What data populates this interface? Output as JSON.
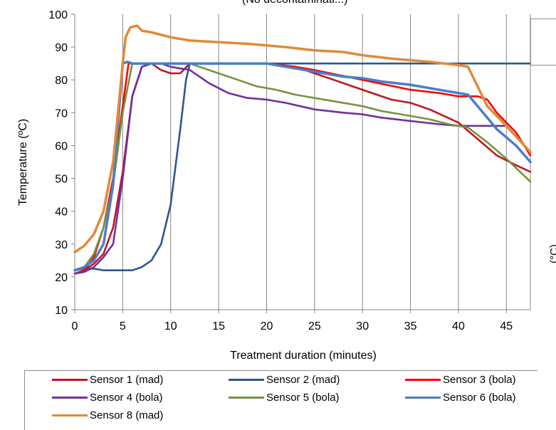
{
  "clipped_title": "(No decontaminati...)",
  "neighbor_axis_fragment": "(°C)",
  "chart_data": {
    "type": "line",
    "xlabel": "Treatment duration (minutes)",
    "ylabel": "Temperature  (ºC)",
    "xlim": [
      0,
      47.5
    ],
    "ylim": [
      10,
      100
    ],
    "xticks": [
      0,
      5,
      10,
      15,
      20,
      25,
      30,
      35,
      40,
      45
    ],
    "yticks": [
      10,
      20,
      30,
      40,
      50,
      60,
      70,
      80,
      90,
      100
    ],
    "grid": "vertical",
    "legend_position": "bottom",
    "series": [
      {
        "name": "Sensor 1 (mad)",
        "color": "#c0171f",
        "points": [
          [
            0,
            21
          ],
          [
            1,
            22
          ],
          [
            2,
            24
          ],
          [
            3,
            27
          ],
          [
            4,
            35
          ],
          [
            5,
            52
          ],
          [
            6,
            75
          ],
          [
            7,
            84
          ],
          [
            8,
            85
          ],
          [
            9,
            83
          ],
          [
            10,
            82
          ],
          [
            11,
            82
          ],
          [
            12,
            85
          ],
          [
            15,
            85
          ],
          [
            20,
            85
          ],
          [
            23,
            84
          ],
          [
            25,
            82
          ],
          [
            27,
            80
          ],
          [
            30,
            77
          ],
          [
            33,
            74
          ],
          [
            35,
            73
          ],
          [
            37,
            71
          ],
          [
            40,
            67
          ],
          [
            42,
            62
          ],
          [
            44,
            57
          ],
          [
            46,
            54
          ],
          [
            47.5,
            52
          ]
        ]
      },
      {
        "name": "Sensor 2 (mad)",
        "color": "#2f5597",
        "points": [
          [
            0,
            22
          ],
          [
            1,
            22.5
          ],
          [
            2,
            22.5
          ],
          [
            3,
            22
          ],
          [
            4,
            22
          ],
          [
            5,
            22
          ],
          [
            6,
            22
          ],
          [
            7,
            23
          ],
          [
            8,
            25
          ],
          [
            9,
            30
          ],
          [
            10,
            42
          ],
          [
            11,
            65
          ],
          [
            11.6,
            80
          ],
          [
            12,
            85
          ],
          [
            13,
            85
          ],
          [
            20,
            85
          ],
          [
            30,
            85
          ],
          [
            40,
            85
          ],
          [
            47.5,
            85
          ]
        ]
      },
      {
        "name": "Sensor 3 (bola)",
        "color": "#ff0000",
        "points": [
          [
            0,
            21
          ],
          [
            1,
            22
          ],
          [
            2,
            26
          ],
          [
            3,
            35
          ],
          [
            4,
            50
          ],
          [
            5,
            72
          ],
          [
            5.6,
            85
          ],
          [
            6,
            85
          ],
          [
            10,
            85
          ],
          [
            20,
            85
          ],
          [
            23,
            84
          ],
          [
            25,
            83
          ],
          [
            30,
            80
          ],
          [
            35,
            77
          ],
          [
            38,
            76
          ],
          [
            40,
            75
          ],
          [
            42,
            75
          ],
          [
            43,
            74
          ],
          [
            44,
            70
          ],
          [
            46,
            64
          ],
          [
            47.5,
            57
          ]
        ]
      },
      {
        "name": "Sensor 4 (bola)",
        "color": "#7030a0",
        "points": [
          [
            0,
            21
          ],
          [
            1,
            21.5
          ],
          [
            2,
            23
          ],
          [
            3,
            26
          ],
          [
            4,
            30
          ],
          [
            5,
            50
          ],
          [
            6,
            75
          ],
          [
            7,
            84
          ],
          [
            8,
            85
          ],
          [
            9,
            85
          ],
          [
            10,
            84
          ],
          [
            12,
            83
          ],
          [
            14,
            79
          ],
          [
            16,
            76
          ],
          [
            18,
            74.5
          ],
          [
            20,
            74
          ],
          [
            22,
            73
          ],
          [
            25,
            71
          ],
          [
            28,
            70
          ],
          [
            30,
            69.5
          ],
          [
            32,
            68.5
          ],
          [
            35,
            67.5
          ],
          [
            38,
            66.5
          ],
          [
            40,
            66
          ],
          [
            43,
            66
          ],
          [
            45,
            66
          ]
        ]
      },
      {
        "name": "Sensor 5 (bola)",
        "color": "#77933c",
        "points": [
          [
            0,
            22
          ],
          [
            1,
            23
          ],
          [
            2,
            27
          ],
          [
            3,
            35
          ],
          [
            4,
            48
          ],
          [
            5,
            70
          ],
          [
            6,
            85
          ],
          [
            7,
            85
          ],
          [
            10,
            85
          ],
          [
            12,
            85
          ],
          [
            13,
            84
          ],
          [
            15,
            82
          ],
          [
            17,
            80
          ],
          [
            19,
            78
          ],
          [
            21,
            77
          ],
          [
            23,
            75.5
          ],
          [
            25,
            74.5
          ],
          [
            27,
            73.5
          ],
          [
            30,
            72
          ],
          [
            32,
            70.5
          ],
          [
            35,
            69
          ],
          [
            37,
            68
          ],
          [
            39,
            66.5
          ],
          [
            41,
            65.5
          ],
          [
            43,
            61
          ],
          [
            45,
            56
          ],
          [
            47.5,
            49
          ]
        ]
      },
      {
        "name": "Sensor 6 (bola)",
        "color": "#4a7ec6",
        "points": [
          [
            0,
            22
          ],
          [
            1,
            23
          ],
          [
            2,
            25
          ],
          [
            3,
            30
          ],
          [
            4,
            48
          ],
          [
            5,
            85
          ],
          [
            5.5,
            85.5
          ],
          [
            6,
            85
          ],
          [
            10,
            85
          ],
          [
            20,
            85
          ],
          [
            22,
            84
          ],
          [
            25,
            82.5
          ],
          [
            28,
            81
          ],
          [
            30,
            80.5
          ],
          [
            32,
            79.5
          ],
          [
            35,
            78.5
          ],
          [
            37,
            77.5
          ],
          [
            40,
            76
          ],
          [
            41,
            75.5
          ],
          [
            42,
            72
          ],
          [
            44,
            65
          ],
          [
            46,
            60
          ],
          [
            47.5,
            55
          ]
        ]
      },
      {
        "name": "Sensor 8 (mad)",
        "color": "#e08a38",
        "points": [
          [
            0,
            27.5
          ],
          [
            1,
            29.5
          ],
          [
            2,
            33
          ],
          [
            3,
            40
          ],
          [
            4,
            55
          ],
          [
            5,
            85
          ],
          [
            5.3,
            93
          ],
          [
            5.8,
            96
          ],
          [
            6.5,
            96.5
          ],
          [
            7,
            95
          ],
          [
            8,
            94.5
          ],
          [
            10,
            93
          ],
          [
            12,
            92
          ],
          [
            15,
            91.5
          ],
          [
            18,
            91
          ],
          [
            20,
            90.5
          ],
          [
            22,
            90
          ],
          [
            25,
            89
          ],
          [
            28,
            88.5
          ],
          [
            30,
            87.5
          ],
          [
            33,
            86.5
          ],
          [
            35,
            86
          ],
          [
            37,
            85.5
          ],
          [
            40,
            84.5
          ],
          [
            41,
            84
          ],
          [
            42,
            78
          ],
          [
            43,
            72
          ],
          [
            45,
            66
          ],
          [
            47.5,
            58
          ]
        ]
      }
    ]
  }
}
